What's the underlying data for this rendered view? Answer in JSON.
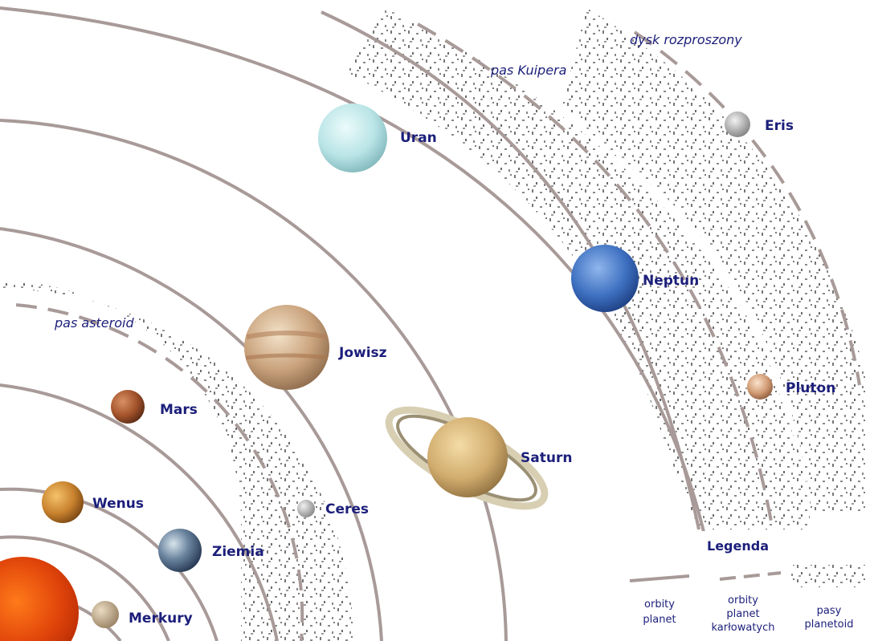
{
  "planets": {
    "merkury": "Merkury",
    "wenus": "Wenus",
    "ziemia": "Ziemia",
    "mars": "Mars",
    "ceres": "Ceres",
    "jowisz": "Jowisz",
    "saturn": "Saturn",
    "uran": "Uran",
    "neptun": "Neptun",
    "pluton": "Pluton",
    "eris": "Eris"
  },
  "belts": {
    "asteroid": "pas asteroid",
    "kuiper": "pas Kuipera",
    "scattered": "dysk rozproszony"
  },
  "legend": {
    "title": "Legenda",
    "orbits_line1": "orbity",
    "orbits_line2": "planet",
    "dwarf_line1": "orbity",
    "dwarf_line2": "planet",
    "dwarf_line3": "karłowatych",
    "belts_line1": "pasy",
    "belts_line2": "planetoid"
  },
  "colors": {
    "orbit": "#a89a98",
    "label": "#1c1f7a",
    "speckle": "#6e6e6e"
  }
}
